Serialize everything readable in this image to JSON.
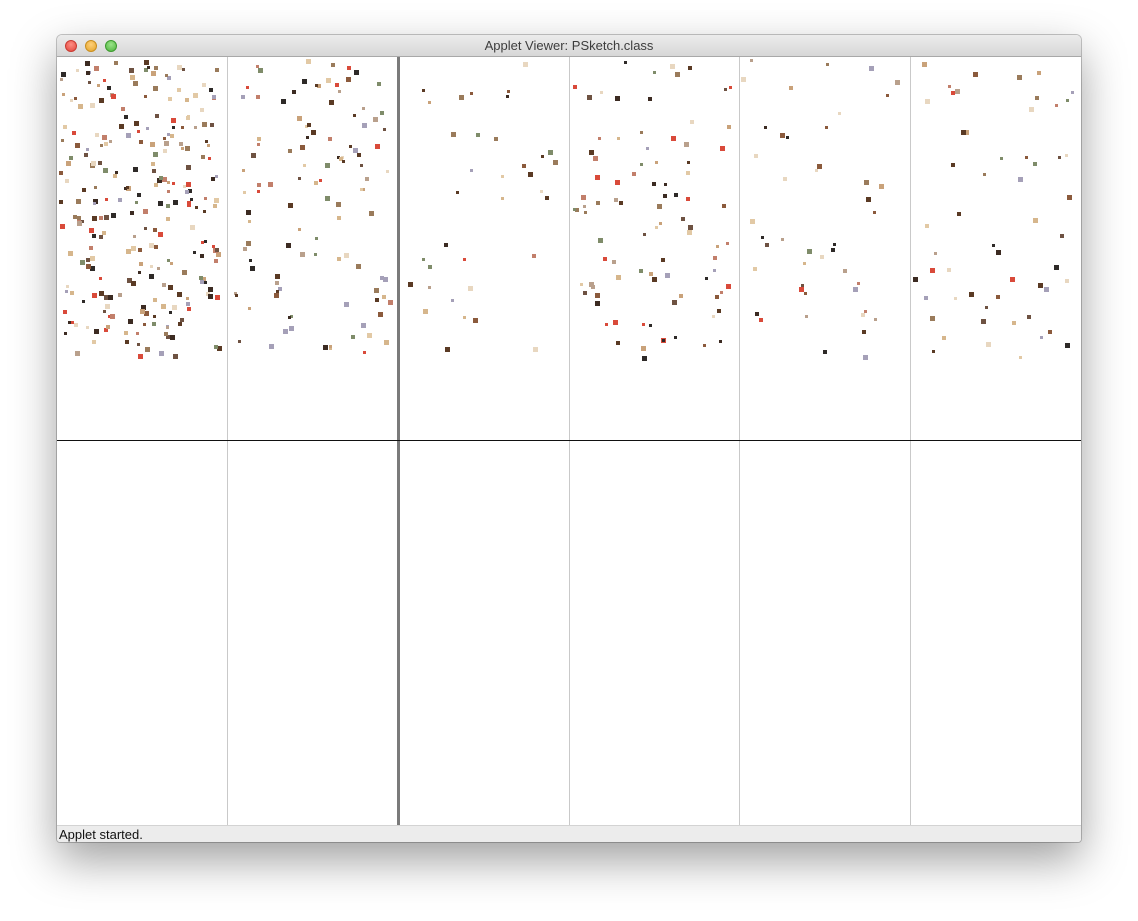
{
  "window": {
    "title": "Applet Viewer: PSketch.class"
  },
  "statusbar": {
    "text": "Applet started."
  },
  "colors": {
    "divider": "#c9c9c9",
    "thick_divider": "#7a7a7a",
    "midline": "#111111",
    "mark_palette": [
      "#5a3a24",
      "#8b5a3c",
      "#c9a27a",
      "#e2c9a5",
      "#3c2b22",
      "#9a7b5b",
      "#d6b68c",
      "#6e5242",
      "#b9a08c",
      "#2e2a28",
      "#c27f6b",
      "#a5a0b8",
      "#d94a3a",
      "#7f8c6a",
      "#e8d7c0"
    ]
  },
  "icons": {
    "close": "close-button",
    "minimize": "minimize-button",
    "maximize": "maximize-button"
  }
}
